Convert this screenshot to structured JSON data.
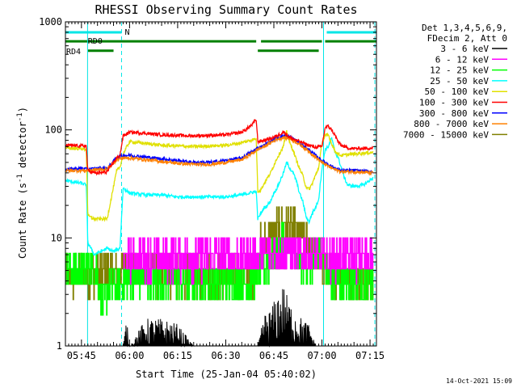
{
  "chart_data": {
    "type": "line",
    "title": "RHESSI Observing Summary Count Rates",
    "xlabel": "Start Time (25-Jan-04 05:40:02)",
    "ylabel_parts": [
      "Count Rate (s",
      "-1",
      " detector",
      "-1",
      ")"
    ],
    "y_scale": "log",
    "ylim": [
      1,
      1000
    ],
    "xlim_minutes": [
      0,
      97
    ],
    "y_ticks": [
      "1",
      "10",
      "100",
      "1000"
    ],
    "x_ticks": [
      {
        "minute": 5,
        "label": "05:45"
      },
      {
        "minute": 20,
        "label": "06:00"
      },
      {
        "minute": 35,
        "label": "06:15"
      },
      {
        "minute": 50,
        "label": "06:30"
      },
      {
        "minute": 65,
        "label": "06:45"
      },
      {
        "minute": 80,
        "label": "07:00"
      },
      {
        "minute": 95,
        "label": "07:15"
      }
    ],
    "legend_header": [
      "Det 1,3,4,5,6,9,",
      "FDecim 2, Att 0"
    ],
    "legend_placement": "right",
    "timestamp": "14-Oct-2021 15:09",
    "flags": [
      {
        "label": "N",
        "color": "#00e6e6",
        "level": 800,
        "segments": [
          [
            0,
            17.5
          ],
          [
            81.5,
            97
          ]
        ]
      },
      {
        "label": "RD0",
        "color": "#008000",
        "level": 660,
        "segments": [
          [
            0,
            59.5
          ],
          [
            61,
            80
          ],
          [
            81,
            97
          ]
        ]
      },
      {
        "label": "RD4",
        "color": "#008000",
        "level": 540,
        "segments": [
          [
            7,
            15
          ],
          [
            60,
            79
          ]
        ]
      }
    ],
    "vlines": [
      {
        "minute": 6.9,
        "style": "solid"
      },
      {
        "minute": 17.5,
        "style": "dashed"
      },
      {
        "minute": 80.5,
        "style": "solid"
      },
      {
        "minute": 96.5,
        "style": "dashed"
      }
    ],
    "series": [
      {
        "name": "3 - 6 keV",
        "color": "#000000",
        "x": [
          18,
          19,
          20,
          25,
          30,
          35,
          40,
          60,
          62,
          64,
          66,
          68,
          70,
          72,
          74,
          76,
          78
        ],
        "y": [
          1,
          1.8,
          1,
          1.8,
          1.8,
          1.6,
          1,
          1,
          2,
          2.2,
          3,
          3.7,
          2.5,
          2,
          1.8,
          1.6,
          1
        ]
      },
      {
        "name": "6 - 12 keV",
        "color": "#ff00ff",
        "x": [
          18,
          20,
          30,
          40,
          50,
          58,
          60,
          62,
          64,
          66,
          68,
          70,
          72,
          74,
          76,
          78,
          80,
          82,
          84,
          90,
          96
        ],
        "y": [
          6.3,
          6.5,
          6.4,
          6.5,
          6.6,
          6.7,
          7,
          7.2,
          7.3,
          7.5,
          8,
          7.7,
          7.4,
          7.2,
          7,
          6.8,
          6.7,
          6.6,
          6.5,
          6.5,
          6.5
        ]
      },
      {
        "name": "12 - 25 keV",
        "color": "#00ff00",
        "x": [
          0,
          5,
          10,
          11,
          14,
          16,
          18,
          20,
          30,
          40,
          50,
          59.5,
          60,
          62,
          64,
          66,
          68,
          70,
          72,
          74,
          76,
          78,
          80,
          82,
          84,
          86,
          90,
          96
        ],
        "y": [
          5,
          5,
          5,
          2.5,
          3.5,
          3.5,
          4,
          4.2,
          4,
          4,
          4,
          4,
          5,
          5.5,
          6.5,
          7.5,
          9,
          7.5,
          6.5,
          5.5,
          5.5,
          7,
          8,
          4,
          4,
          4,
          4,
          4
        ]
      },
      {
        "name": "25 - 50 keV",
        "color": "#00ffff",
        "x": [
          0,
          5,
          6.5,
          7,
          9,
          11,
          13,
          15,
          17,
          18,
          20,
          25,
          30,
          35,
          40,
          45,
          50,
          55,
          59.5,
          60,
          61,
          62,
          63,
          64,
          65,
          66,
          67,
          68,
          69,
          70,
          71,
          72,
          73,
          74,
          75,
          76,
          77,
          78,
          79,
          80,
          81,
          82,
          83,
          84,
          85,
          86,
          87,
          88,
          90,
          93,
          96
        ],
        "y": [
          34,
          32,
          31,
          9,
          7,
          7.5,
          8,
          7.5,
          8,
          29,
          26,
          25,
          25,
          24,
          24,
          24,
          24,
          25,
          27,
          15,
          17,
          19,
          20,
          22,
          26,
          29,
          34,
          40,
          50,
          44,
          40,
          34,
          26,
          22,
          16,
          14,
          17,
          19,
          23,
          44,
          66,
          70,
          85,
          63,
          56,
          45,
          36,
          31,
          30,
          31,
          36
        ]
      },
      {
        "name": "50 - 100 keV",
        "color": "#e0e000",
        "x": [
          0,
          5,
          6.5,
          7,
          9,
          11,
          13,
          16,
          17,
          18,
          20,
          25,
          30,
          35,
          40,
          45,
          50,
          55,
          59.5,
          60,
          61,
          62,
          63,
          64,
          65,
          66,
          67,
          68,
          69,
          70,
          71,
          72,
          73,
          74,
          75,
          76,
          77,
          78,
          79,
          80,
          81,
          82,
          83,
          84,
          85,
          86,
          90,
          96
        ],
        "y": [
          68,
          67,
          66,
          16,
          15,
          15,
          15,
          42,
          45,
          60,
          78,
          75,
          72,
          71,
          70,
          71,
          72,
          76,
          83,
          27,
          28,
          32,
          36,
          40,
          47,
          55,
          62,
          71,
          96,
          75,
          65,
          53,
          44,
          38,
          30,
          28,
          32,
          38,
          45,
          75,
          88,
          90,
          75,
          64,
          60,
          58,
          60,
          62
        ]
      },
      {
        "name": "100 - 300 keV",
        "color": "#ff0000",
        "x": [
          0,
          5,
          6.5,
          7,
          9,
          11,
          13,
          16,
          17,
          18,
          20,
          25,
          30,
          35,
          40,
          45,
          50,
          55,
          58,
          59.5,
          60,
          62,
          64,
          66,
          68,
          70,
          72,
          74,
          76,
          78,
          80,
          81,
          82,
          83,
          84,
          85,
          86,
          88,
          90,
          96
        ],
        "y": [
          72,
          71,
          71,
          42,
          40,
          40,
          41,
          55,
          58,
          88,
          95,
          93,
          90,
          89,
          88,
          89,
          90,
          95,
          110,
          125,
          78,
          80,
          83,
          88,
          96,
          85,
          80,
          76,
          72,
          69,
          70,
          105,
          108,
          100,
          90,
          78,
          72,
          68,
          67,
          68
        ]
      },
      {
        "name": "300 - 800 keV",
        "color": "#0000ff",
        "x": [
          0,
          5,
          7,
          10,
          13,
          16,
          18,
          20,
          25,
          30,
          35,
          40,
          45,
          50,
          55,
          58,
          60,
          62,
          64,
          66,
          68,
          70,
          72,
          74,
          76,
          78,
          80,
          82,
          84,
          86,
          90,
          96
        ],
        "y": [
          43,
          44,
          43,
          44,
          44,
          55,
          58,
          58,
          56,
          54,
          52,
          50,
          50,
          52,
          55,
          62,
          68,
          72,
          78,
          85,
          88,
          86,
          80,
          72,
          65,
          58,
          52,
          48,
          44,
          42,
          42,
          41
        ]
      },
      {
        "name": "800 - 7000 keV",
        "color": "#ff8000",
        "x": [
          0,
          5,
          7,
          10,
          13,
          16,
          18,
          20,
          25,
          30,
          35,
          40,
          45,
          50,
          55,
          58,
          60,
          62,
          64,
          66,
          68,
          70,
          72,
          74,
          76,
          78,
          80,
          82,
          84,
          86,
          90,
          96
        ],
        "y": [
          42,
          42,
          42,
          43,
          43,
          53,
          55,
          55,
          53,
          51,
          49,
          48,
          48,
          50,
          53,
          60,
          66,
          70,
          76,
          82,
          85,
          83,
          77,
          70,
          63,
          56,
          50,
          46,
          43,
          41,
          41,
          40
        ]
      },
      {
        "name": "7000 - 15000 keV",
        "color": "#808000",
        "x": [
          0,
          5,
          10,
          15,
          18,
          20,
          30,
          40,
          50,
          55,
          59.5,
          60,
          62,
          64,
          66,
          68,
          70,
          72,
          74,
          76,
          78,
          80,
          82,
          84,
          86,
          90,
          96
        ],
        "y": [
          4.2,
          4.5,
          4.7,
          5,
          5.2,
          5,
          4.6,
          4.5,
          4.4,
          4.5,
          4.6,
          7.5,
          9,
          10.5,
          12,
          13,
          12.5,
          11,
          9.5,
          8,
          6.5,
          5.5,
          4.8,
          4.5,
          4.3,
          4.2,
          4.2
        ]
      }
    ]
  }
}
